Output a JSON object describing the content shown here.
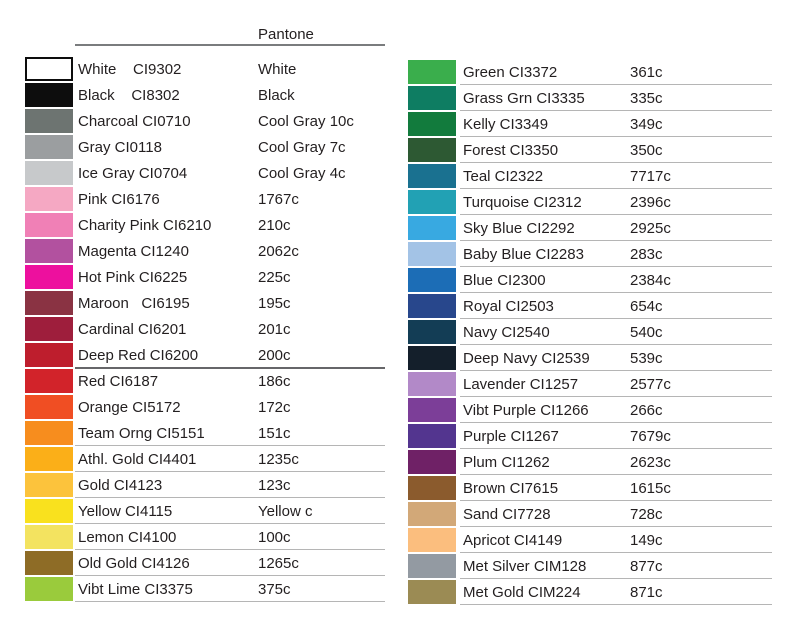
{
  "header": {
    "pantone_label": "Pantone"
  },
  "style": {
    "text_color": "#231f20",
    "header_line_color": "#7a7c7e",
    "light_rule_color": "#b5b5b5",
    "dark_rule_color": "#666669",
    "white_swatch_border": "#0d0d0d"
  },
  "columns": {
    "left": {
      "rows": [
        {
          "label": "White    CI9302",
          "pantone": "White",
          "color": "#ffffff",
          "border": true,
          "underline": "none"
        },
        {
          "label": "Black    CI8302",
          "pantone": "Black",
          "color": "#0d0d0d",
          "border": false,
          "underline": "none"
        },
        {
          "label": "Charcoal CI0710",
          "pantone": "Cool Gray 10c",
          "color": "#6d7471",
          "border": false,
          "underline": "none"
        },
        {
          "label": "Gray CI0118",
          "pantone": "Cool Gray 7c",
          "color": "#9b9ea0",
          "border": false,
          "underline": "none"
        },
        {
          "label": "Ice Gray CI0704",
          "pantone": "Cool Gray 4c",
          "color": "#c7c9cb",
          "border": false,
          "underline": "none"
        },
        {
          "label": "Pink CI6176",
          "pantone": "1767c",
          "color": "#f5a8c3",
          "border": false,
          "underline": "none"
        },
        {
          "label": "Charity Pink CI6210",
          "pantone": "210c",
          "color": "#f080b6",
          "border": false,
          "underline": "none"
        },
        {
          "label": "Magenta CI1240",
          "pantone": "2062c",
          "color": "#b2519f",
          "border": false,
          "underline": "none"
        },
        {
          "label": "Hot Pink CI6225",
          "pantone": "225c",
          "color": "#ed109e",
          "border": false,
          "underline": "none"
        },
        {
          "label": "Maroon   CI6195",
          "pantone": "195c",
          "color": "#8a3343",
          "border": false,
          "underline": "none"
        },
        {
          "label": "Cardinal CI6201",
          "pantone": "201c",
          "color": "#9e1e3c",
          "border": false,
          "underline": "none"
        },
        {
          "label": "Deep Red CI6200",
          "pantone": "200c",
          "color": "#be1e2d",
          "border": false,
          "underline": "dark"
        },
        {
          "label": "Red CI6187",
          "pantone": "186c",
          "color": "#d2232a",
          "border": false,
          "underline": "none"
        },
        {
          "label": "Orange CI5172",
          "pantone": "172c",
          "color": "#f04e23",
          "border": false,
          "underline": "none"
        },
        {
          "label": "Team Orng CI5151",
          "pantone": "151c",
          "color": "#f78d1e",
          "border": false,
          "underline": "light"
        },
        {
          "label": "Athl. Gold CI4401",
          "pantone": "1235c",
          "color": "#fbaf18",
          "border": false,
          "underline": "light"
        },
        {
          "label": "Gold CI4123",
          "pantone": "123c",
          "color": "#fcc33c",
          "border": false,
          "underline": "light"
        },
        {
          "label": "Yellow CI4115",
          "pantone": "Yellow c",
          "color": "#f9e11e",
          "border": false,
          "underline": "light"
        },
        {
          "label": "Lemon CI4100",
          "pantone": "100c",
          "color": "#f3e360",
          "border": false,
          "underline": "light"
        },
        {
          "label": "Old Gold CI4126",
          "pantone": "1265c",
          "color": "#8e6c26",
          "border": false,
          "underline": "light"
        },
        {
          "label": "Vibt Lime CI3375",
          "pantone": "375c",
          "color": "#9acb3c",
          "border": false,
          "underline": "light"
        }
      ]
    },
    "right": {
      "rows": [
        {
          "label": "Green CI3372",
          "pantone": "361c",
          "color": "#3aae4c",
          "border": false,
          "underline": "light"
        },
        {
          "label": "Grass Grn CI3335",
          "pantone": "335c",
          "color": "#0e7d62",
          "border": false,
          "underline": "light"
        },
        {
          "label": "Kelly CI3349",
          "pantone": "349c",
          "color": "#127b3d",
          "border": false,
          "underline": "light"
        },
        {
          "label": "Forest CI3350",
          "pantone": "350c",
          "color": "#2d5933",
          "border": false,
          "underline": "light"
        },
        {
          "label": "Teal CI2322",
          "pantone": "7717c",
          "color": "#1a7190",
          "border": false,
          "underline": "light"
        },
        {
          "label": "Turquoise CI2312",
          "pantone": "2396c",
          "color": "#22a1b4",
          "border": false,
          "underline": "light"
        },
        {
          "label": "Sky Blue CI2292",
          "pantone": "2925c",
          "color": "#38a9e1",
          "border": false,
          "underline": "light"
        },
        {
          "label": "Baby Blue CI2283",
          "pantone": "283c",
          "color": "#a3c3e6",
          "border": false,
          "underline": "light"
        },
        {
          "label": "Blue CI2300",
          "pantone": "2384c",
          "color": "#1c6db6",
          "border": false,
          "underline": "light"
        },
        {
          "label": "Royal CI2503",
          "pantone": "654c",
          "color": "#28478c",
          "border": false,
          "underline": "light"
        },
        {
          "label": "Navy CI2540",
          "pantone": "540c",
          "color": "#133d55",
          "border": false,
          "underline": "light"
        },
        {
          "label": "Deep Navy CI2539",
          "pantone": "539c",
          "color": "#141f2b",
          "border": false,
          "underline": "light"
        },
        {
          "label": "Lavender CI1257",
          "pantone": "2577c",
          "color": "#b289c8",
          "border": false,
          "underline": "light"
        },
        {
          "label": "Vibt Purple CI1266",
          "pantone": "266c",
          "color": "#7c3e98",
          "border": false,
          "underline": "light"
        },
        {
          "label": "Purple CI1267",
          "pantone": "7679c",
          "color": "#53358f",
          "border": false,
          "underline": "light"
        },
        {
          "label": "Plum CI1262",
          "pantone": "2623c",
          "color": "#6f2166",
          "border": false,
          "underline": "light"
        },
        {
          "label": "Brown CI7615",
          "pantone": "1615c",
          "color": "#8b5b2d",
          "border": false,
          "underline": "light"
        },
        {
          "label": "Sand CI7728",
          "pantone": "728c",
          "color": "#d2a878",
          "border": false,
          "underline": "light"
        },
        {
          "label": "Apricot CI4149",
          "pantone": "149c",
          "color": "#fbbe7e",
          "border": false,
          "underline": "light"
        },
        {
          "label": "Met Silver CIM128",
          "pantone": "877c",
          "color": "#939aa2",
          "border": false,
          "underline": "light"
        },
        {
          "label": "Met Gold CIM224",
          "pantone": "871c",
          "color": "#9b8b54",
          "border": false,
          "underline": "light"
        }
      ]
    }
  }
}
